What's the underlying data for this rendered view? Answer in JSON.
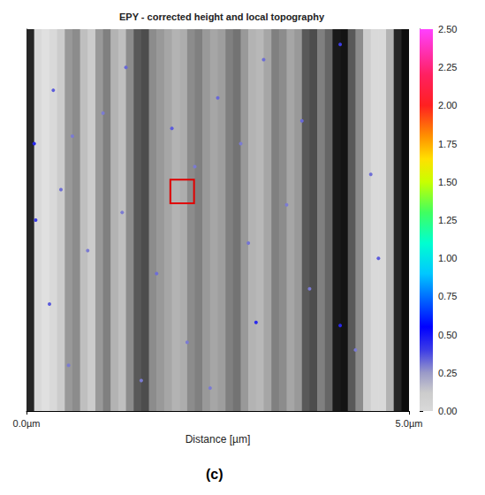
{
  "chart_data": {
    "type": "heatmap",
    "title": "EPY - corrected height and local topography",
    "x_label": "Distance [µm]",
    "panel_label": "(c)",
    "xlim": [
      0,
      5
    ],
    "xticks": [
      {
        "value": 0,
        "label": "0.0µm"
      },
      {
        "value": 5,
        "label": "5.0µm"
      }
    ],
    "ylim": [
      0,
      5
    ],
    "tick_labels": "x",
    "local_topography": {
      "x": [
        0.05,
        0.15,
        0.25,
        0.35,
        0.45,
        0.55,
        0.65,
        0.75,
        0.85,
        0.95,
        1.05,
        1.15,
        1.25,
        1.35,
        1.45,
        1.55,
        1.65,
        1.75,
        1.85,
        1.95,
        2.05,
        2.15,
        2.25,
        2.35,
        2.45,
        2.55,
        2.65,
        2.75,
        2.85,
        2.95,
        3.05,
        3.15,
        3.25,
        3.35,
        3.45,
        3.55,
        3.65,
        3.75,
        3.85,
        3.95,
        4.05,
        4.15,
        4.25,
        4.35,
        4.45,
        4.55,
        4.65,
        4.75,
        4.85,
        4.95
      ],
      "values": [
        0.15,
        0.85,
        0.88,
        0.85,
        0.8,
        0.6,
        0.55,
        0.75,
        0.8,
        0.6,
        0.5,
        0.7,
        0.75,
        0.55,
        0.35,
        0.3,
        0.55,
        0.6,
        0.65,
        0.7,
        0.68,
        0.55,
        0.5,
        0.6,
        0.65,
        0.62,
        0.5,
        0.45,
        0.6,
        0.7,
        0.72,
        0.65,
        0.5,
        0.55,
        0.65,
        0.6,
        0.35,
        0.3,
        0.5,
        0.4,
        0.1,
        0.08,
        0.35,
        0.55,
        0.8,
        0.85,
        0.85,
        0.7,
        0.15,
        0.05
      ]
    },
    "height": {
      "points": [
        [
          0.35,
          4.2,
          0.35
        ],
        [
          0.6,
          3.6,
          0.3
        ],
        [
          0.45,
          2.9,
          0.32
        ],
        [
          0.8,
          2.1,
          0.3
        ],
        [
          0.3,
          1.4,
          0.35
        ],
        [
          0.55,
          0.6,
          0.3
        ],
        [
          1.0,
          3.9,
          0.3
        ],
        [
          1.3,
          4.5,
          0.33
        ],
        [
          1.25,
          2.6,
          0.3
        ],
        [
          1.9,
          3.7,
          0.35
        ],
        [
          2.2,
          3.2,
          0.3
        ],
        [
          1.7,
          1.8,
          0.32
        ],
        [
          2.1,
          0.9,
          0.3
        ],
        [
          2.5,
          4.1,
          0.33
        ],
        [
          2.8,
          3.5,
          0.3
        ],
        [
          3.1,
          4.6,
          0.32
        ],
        [
          3.4,
          2.7,
          0.3
        ],
        [
          2.9,
          2.2,
          0.31
        ],
        [
          3.6,
          3.8,
          0.33
        ],
        [
          3.7,
          1.6,
          0.3
        ],
        [
          4.1,
          4.8,
          0.4
        ],
        [
          4.5,
          3.1,
          0.32
        ],
        [
          4.6,
          2.0,
          0.35
        ],
        [
          4.3,
          0.8,
          0.3
        ],
        [
          0.1,
          3.5,
          0.45
        ],
        [
          0.12,
          2.5,
          0.4
        ],
        [
          3.0,
          1.16,
          0.45
        ],
        [
          4.1,
          1.12,
          0.45
        ],
        [
          2.4,
          0.3,
          0.3
        ],
        [
          1.5,
          0.4,
          0.3
        ]
      ]
    },
    "marked_region": {
      "x": [
        1.88,
        2.19
      ],
      "y": [
        2.72,
        3.03
      ],
      "color": "#e00000"
    },
    "colorbar": {
      "range": [
        0,
        2.5
      ],
      "ticks": [
        {
          "value": 0,
          "label": "0.00"
        },
        0.25,
        {
          "value": 0.5,
          "label": "0.50"
        },
        0.75,
        {
          "value": 1,
          "label": "1.00"
        },
        1.25,
        {
          "value": 1.5,
          "label": "1.50"
        },
        1.75,
        {
          "value": 2,
          "label": "2.00"
        },
        2.25,
        {
          "value": 2.5,
          "label": "2.50"
        }
      ],
      "color_values": [
        0,
        0.12,
        0.25,
        0.4,
        0.55,
        0.75,
        0.9,
        1.1,
        1.3,
        1.5,
        1.65,
        1.8,
        2.0,
        2.2,
        2.5
      ],
      "colors": [
        "#d9d9d9",
        "#cccccc",
        "#9a9ac8",
        "#3c3ce6",
        "#0000ff",
        "#0070ff",
        "#00c8ff",
        "#00ffd0",
        "#40ff60",
        "#c8ff00",
        "#ffe000",
        "#ff9000",
        "#ff2020",
        "#ff2060",
        "#ff40ff"
      ]
    }
  }
}
